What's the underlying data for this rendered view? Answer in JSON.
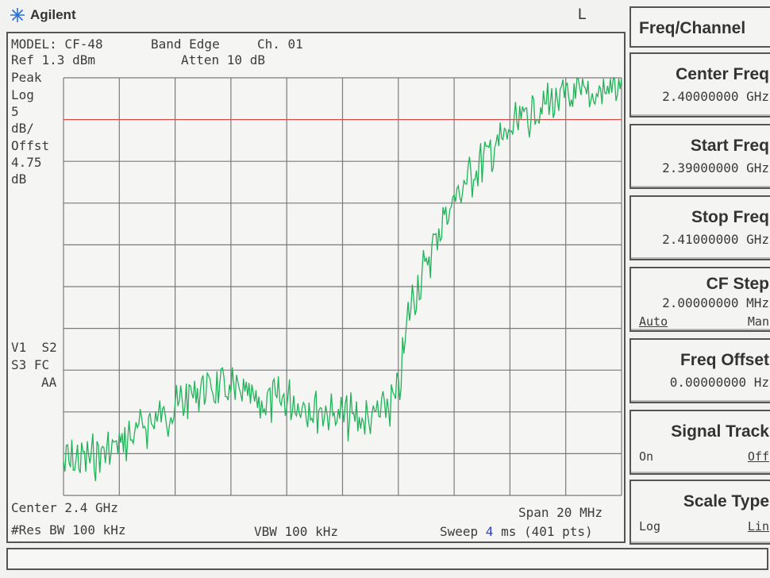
{
  "header": {
    "brand": "Agilent",
    "local_indicator": "L"
  },
  "screen": {
    "line1": {
      "model": "MODEL: CF-48",
      "band": "Band Edge",
      "channel": "Ch. 01"
    },
    "line2": {
      "ref": "Ref 1.3 dBm",
      "atten": "Atten 10 dB"
    },
    "left_annotations": [
      "Peak",
      "Log",
      "5",
      "dB/",
      "Offst",
      "4.75",
      "dB"
    ],
    "status_annotations": [
      "V1  S2",
      "S3 FC",
      "AA"
    ],
    "bottom": {
      "center": "Center 2.4 GHz",
      "span": "Span 20 MHz",
      "rbw": "#Res BW 100 kHz",
      "vbw": "VBW 100 kHz",
      "sweep_prefix": "Sweep ",
      "sweep_value": "4",
      "sweep_suffix": " ms (401 pts)"
    }
  },
  "trace": {
    "color": "#22b35a",
    "grid_color": "#7a7a7a",
    "ref_line_color": "#d84a4a",
    "level_divs_from_top": [
      [
        0,
        9.2
      ],
      [
        5,
        9.1
      ],
      [
        10,
        8.8
      ],
      [
        15,
        8.3
      ],
      [
        20,
        7.9
      ],
      [
        25,
        7.4
      ],
      [
        30,
        7.5
      ],
      [
        35,
        7.8
      ],
      [
        40,
        7.7
      ],
      [
        45,
        7.9
      ],
      [
        50,
        8.1
      ],
      [
        55,
        8.2
      ],
      [
        58,
        7.9
      ],
      [
        60,
        7.6
      ],
      [
        62,
        5.5
      ],
      [
        65,
        4.5
      ],
      [
        68,
        3.4
      ],
      [
        71,
        2.7
      ],
      [
        75,
        2.0
      ],
      [
        80,
        1.3
      ],
      [
        85,
        0.7
      ],
      [
        90,
        0.5
      ],
      [
        95,
        0.4
      ],
      [
        100,
        0.1
      ]
    ]
  },
  "menu": {
    "title": "Freq/Channel",
    "keys": [
      {
        "name": "center-freq",
        "title": "Center Freq",
        "value": "2.40000000 GHz"
      },
      {
        "name": "start-freq",
        "title": "Start Freq",
        "value": "2.39000000 GHz"
      },
      {
        "name": "stop-freq",
        "title": "Stop Freq",
        "value": "2.41000000 GHz"
      },
      {
        "name": "cf-step",
        "title": "CF Step",
        "value": "2.00000000 MHz",
        "opt_left": "Auto",
        "opt_right": "Man"
      },
      {
        "name": "freq-offset",
        "title": "Freq Offset",
        "value": "0.00000000  Hz"
      },
      {
        "name": "signal-track",
        "title": "Signal Track",
        "opt_left": "On",
        "opt_right": "Off"
      },
      {
        "name": "scale-type",
        "title": "Scale Type",
        "opt_left": "Log",
        "opt_right": "Lin"
      }
    ]
  },
  "message_bar": ""
}
